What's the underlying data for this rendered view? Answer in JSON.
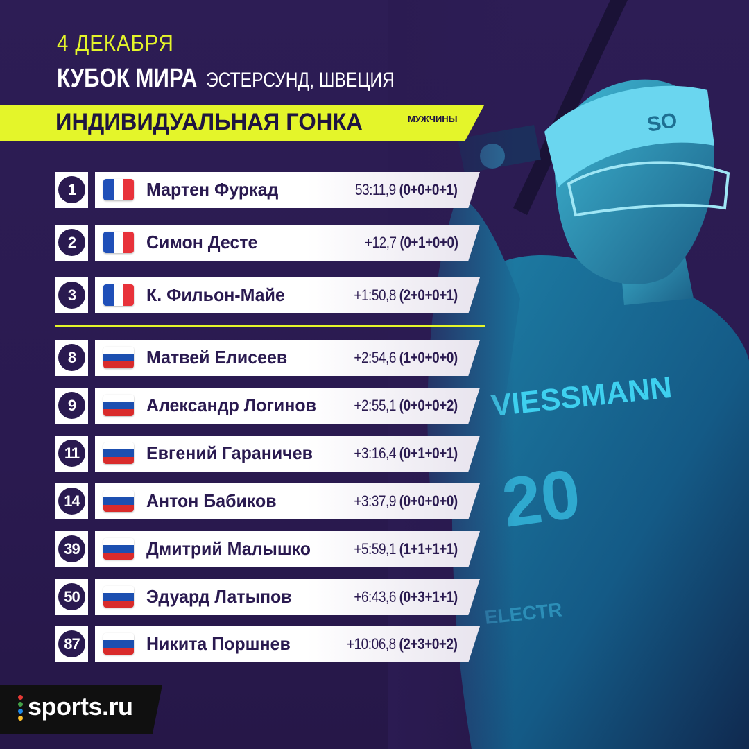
{
  "header": {
    "date": "4 ДЕКАБРЯ",
    "competition": "КУБОК МИРА",
    "location": "ЭСТЕРСУНД, ШВЕЦИЯ",
    "race": "ИНДИВИДУАЛЬНАЯ ГОНКА",
    "gender": "МУЖЧИНЫ"
  },
  "colors": {
    "accent": "#e4f52a",
    "background": "#2b1b52",
    "text_dark": "#2a1a50"
  },
  "top3": [
    {
      "rank": "1",
      "flag": "france-flag",
      "name": "Мартен Фуркад",
      "time": "53:11,9",
      "shooting": "(0+0+0+1)"
    },
    {
      "rank": "2",
      "flag": "france-flag",
      "name": "Симон Десте",
      "time": "+12,7",
      "shooting": "(0+1+0+0)"
    },
    {
      "rank": "3",
      "flag": "france-flag",
      "name": "К. Фильон-Майе",
      "time": "+1:50,8",
      "shooting": "(2+0+0+1)"
    }
  ],
  "russians": [
    {
      "rank": "8",
      "flag": "russia-flag",
      "name": "Матвей Елисеев",
      "time": "+2:54,6",
      "shooting": "(1+0+0+0)"
    },
    {
      "rank": "9",
      "flag": "russia-flag",
      "name": "Александр Логинов",
      "time": "+2:55,1",
      "shooting": "(0+0+0+2)"
    },
    {
      "rank": "11",
      "flag": "russia-flag",
      "name": "Евгений Гараничев",
      "time": "+3:16,4",
      "shooting": "(0+1+0+1)"
    },
    {
      "rank": "14",
      "flag": "russia-flag",
      "name": "Антон Бабиков",
      "time": "+3:37,9",
      "shooting": "(0+0+0+0)"
    },
    {
      "rank": "39",
      "flag": "russia-flag",
      "name": "Дмитрий Малышко",
      "time": "+5:59,1",
      "shooting": "(1+1+1+1)"
    },
    {
      "rank": "50",
      "flag": "russia-flag",
      "name": "Эдуард Латыпов",
      "time": "+6:43,6",
      "shooting": "(0+3+1+1)"
    },
    {
      "rank": "87",
      "flag": "russia-flag",
      "name": "Никита Поршнев",
      "time": "+10:06,8",
      "shooting": "(2+3+0+2)"
    }
  ],
  "photo": {
    "headband": "SO",
    "sponsor": "VIESSMANN",
    "bib": "20",
    "lower_text": "ELECTR"
  },
  "logo": {
    "text": "sports.ru"
  }
}
